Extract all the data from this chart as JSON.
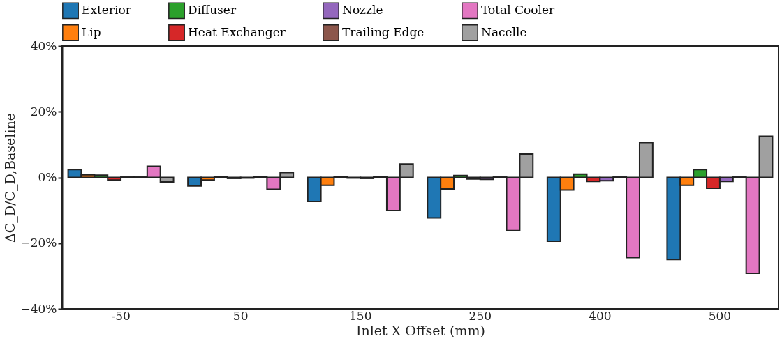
{
  "chart_data": {
    "type": "bar",
    "xlabel": "Inlet X Offset (mm)",
    "ylabel": "ΔC_D/C_D,Baseline",
    "categories": [
      "-50",
      "50",
      "150",
      "250",
      "400",
      "500"
    ],
    "series": [
      {
        "name": "Exterior",
        "color": "#1f77b4",
        "values": [
          2.4,
          -2.6,
          -7.3,
          -12.3,
          -19.4,
          -25.0
        ]
      },
      {
        "name": "Lip",
        "color": "#ff7f0e",
        "values": [
          0.8,
          -0.8,
          -2.4,
          -3.5,
          -3.8,
          -2.4
        ]
      },
      {
        "name": "Diffuser",
        "color": "#2ca02c",
        "values": [
          0.7,
          0.3,
          0.1,
          0.6,
          1.0,
          2.4
        ]
      },
      {
        "name": "Heat Exchanger",
        "color": "#d62728",
        "values": [
          -0.8,
          -0.3,
          -0.2,
          -0.5,
          -1.2,
          -3.3
        ]
      },
      {
        "name": "Nozzle",
        "color": "#9467bd",
        "values": [
          0.1,
          -0.2,
          -0.3,
          -0.6,
          -1.0,
          -1.2
        ]
      },
      {
        "name": "Trailing Edge",
        "color": "#8c564b",
        "values": [
          0.1,
          0.1,
          0.1,
          0.1,
          0.1,
          0.1
        ]
      },
      {
        "name": "Total Cooler",
        "color": "#e377c2",
        "values": [
          3.4,
          -3.6,
          -10.1,
          -16.2,
          -24.4,
          -29.2
        ]
      },
      {
        "name": "Nacelle",
        "color": "#a0a0a0",
        "values": [
          -1.4,
          1.5,
          4.1,
          7.1,
          10.6,
          12.5
        ]
      }
    ],
    "ylim": [
      -40,
      40
    ],
    "yticks": [
      {
        "value": -40,
        "label": "−40%"
      },
      {
        "value": -20,
        "label": "−20%"
      },
      {
        "value": 0,
        "label": "0%"
      },
      {
        "value": 20,
        "label": "20%"
      },
      {
        "value": 40,
        "label": "40%"
      }
    ],
    "legend": "top",
    "grid": false
  }
}
